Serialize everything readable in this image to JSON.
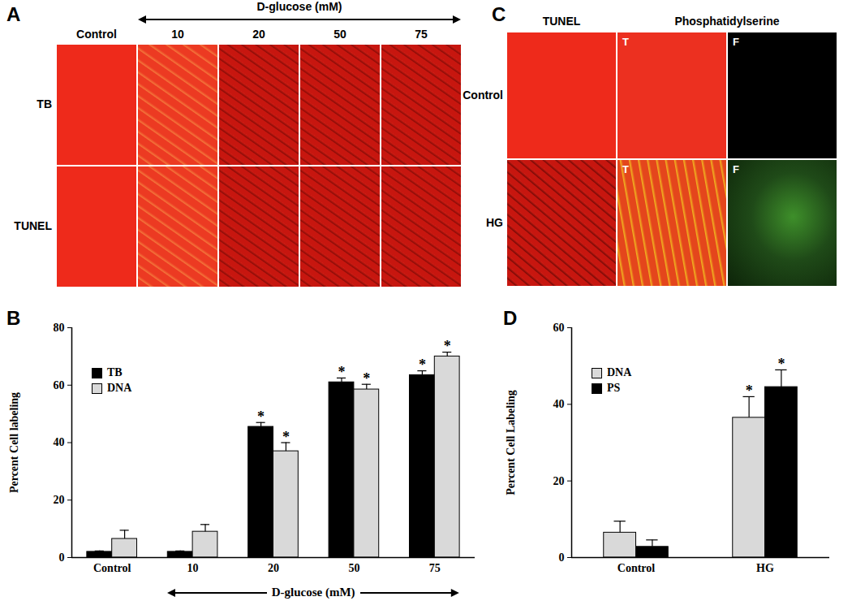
{
  "image_panels": [
    {
      "panel_label": "A",
      "header": "D-glucose (mM)",
      "columns": [
        "Control",
        "10",
        "20",
        "50",
        "75"
      ],
      "rows": [
        "TB",
        "TUNEL"
      ]
    },
    {
      "panel_label": "C",
      "column_groups": [
        {
          "label": "TUNEL",
          "span": 1
        },
        {
          "label": "Phosphatidylserine",
          "span": 2
        }
      ],
      "rows": [
        "Control",
        "HG"
      ],
      "cell_tags": [
        null,
        "T",
        "F"
      ]
    }
  ],
  "chart_data": [
    {
      "type": "bar",
      "panel_label": "B",
      "categories": [
        "Control",
        "10",
        "20",
        "50",
        "75"
      ],
      "xlabel": "D-glucose (mM)",
      "ylabel": "Percent Cell labeling",
      "ylim": [
        0,
        80
      ],
      "yticks": [
        0,
        20,
        40,
        60,
        80
      ],
      "legend": "upper left",
      "series": [
        {
          "name": "TB",
          "color": "#000000",
          "values": [
            2,
            2,
            45.5,
            61,
            63.5
          ],
          "errors": [
            0.3,
            0.3,
            1.5,
            1.5,
            1.5
          ],
          "significance": [
            null,
            null,
            "*",
            "*",
            "*"
          ]
        },
        {
          "name": "DNA",
          "color": "#d9d9d9",
          "values": [
            6.5,
            9,
            37,
            58.5,
            70
          ],
          "errors": [
            3,
            2.5,
            3,
            1.8,
            1.5
          ],
          "significance": [
            null,
            null,
            "*",
            "*",
            "*"
          ]
        }
      ]
    },
    {
      "type": "bar",
      "panel_label": "D",
      "categories": [
        "Control",
        "HG"
      ],
      "ylabel": "Percent Cell Labeling",
      "ylim": [
        0,
        60
      ],
      "yticks": [
        0,
        20,
        40,
        60
      ],
      "legend": "upper left",
      "series": [
        {
          "name": "DNA",
          "color": "#d9d9d9",
          "values": [
            6.5,
            36.5
          ],
          "errors": [
            3,
            5.5
          ],
          "significance": [
            null,
            "*"
          ]
        },
        {
          "name": "PS",
          "color": "#000000",
          "values": [
            2.8,
            44.5
          ],
          "errors": [
            1.8,
            4.5
          ],
          "significance": [
            null,
            "*"
          ]
        }
      ]
    }
  ]
}
